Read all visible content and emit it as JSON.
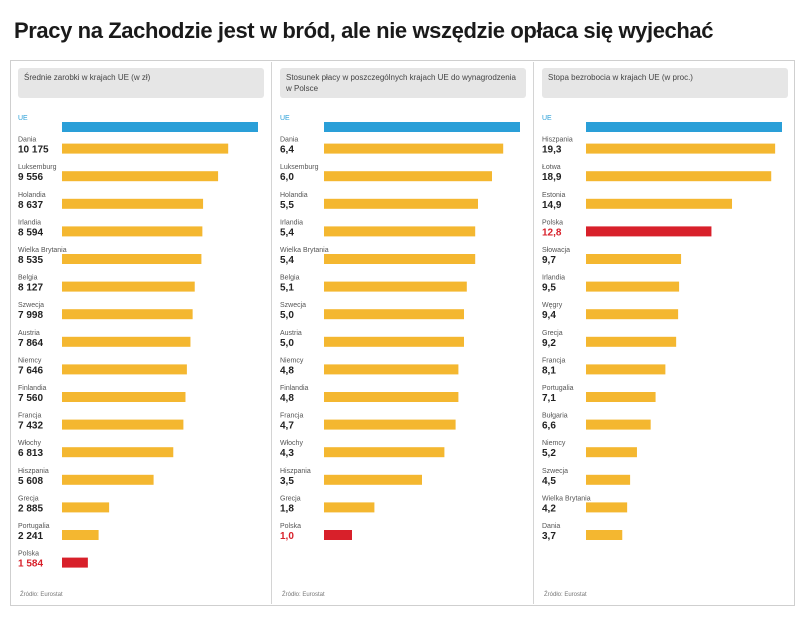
{
  "title": "Pracy na Zachodzie jest w bród, ale nie wszędzie opłaca się wyjechać",
  "colors": {
    "highlight": "#2a9fd8",
    "bar": "#f4b730",
    "poland": "#d8202a"
  },
  "chart_data": [
    {
      "type": "bar",
      "orientation": "horizontal",
      "header": "Średnie zarobki w krajach UE (w zł)",
      "source": "Źródło: Eurostat",
      "xlim": [
        0,
        12000
      ],
      "items": [
        {
          "label": "UE",
          "value_text": "",
          "value": 12000,
          "color": "highlight"
        },
        {
          "label": "Dania",
          "value_text": "10 175",
          "value": 10175,
          "color": "bar"
        },
        {
          "label": "Luksemburg",
          "value_text": "9 556",
          "value": 9556,
          "color": "bar"
        },
        {
          "label": "Holandia",
          "value_text": "8 637",
          "value": 8637,
          "color": "bar"
        },
        {
          "label": "Irlandia",
          "value_text": "8 594",
          "value": 8594,
          "color": "bar"
        },
        {
          "label": "Wielka Brytania",
          "value_text": "8 535",
          "value": 8535,
          "color": "bar"
        },
        {
          "label": "Belgia",
          "value_text": "8 127",
          "value": 8127,
          "color": "bar"
        },
        {
          "label": "Szwecja",
          "value_text": "7 998",
          "value": 7998,
          "color": "bar"
        },
        {
          "label": "Austria",
          "value_text": "7 864",
          "value": 7864,
          "color": "bar"
        },
        {
          "label": "Niemcy",
          "value_text": "7 646",
          "value": 7646,
          "color": "bar"
        },
        {
          "label": "Finlandia",
          "value_text": "7 560",
          "value": 7560,
          "color": "bar"
        },
        {
          "label": "Francja",
          "value_text": "7 432",
          "value": 7432,
          "color": "bar"
        },
        {
          "label": "Włochy",
          "value_text": "6 813",
          "value": 6813,
          "color": "bar"
        },
        {
          "label": "Hiszpania",
          "value_text": "5 608",
          "value": 5608,
          "color": "bar"
        },
        {
          "label": "Grecja",
          "value_text": "2 885",
          "value": 2885,
          "color": "bar"
        },
        {
          "label": "Portugalia",
          "value_text": "2 241",
          "value": 2241,
          "color": "bar"
        },
        {
          "label": "Polska",
          "value_text": "1 584",
          "value": 1584,
          "color": "poland"
        }
      ]
    },
    {
      "type": "bar",
      "orientation": "horizontal",
      "header": "Stosunek płacy w poszczególnych krajach UE do wynagrodzenia w Polsce",
      "source": "Źródło: Eurostat",
      "xlim": [
        0,
        7
      ],
      "items": [
        {
          "label": "UE",
          "value_text": "",
          "value": 7.0,
          "color": "highlight"
        },
        {
          "label": "Dania",
          "value_text": "6,4",
          "value": 6.4,
          "color": "bar"
        },
        {
          "label": "Luksemburg",
          "value_text": "6,0",
          "value": 6.0,
          "color": "bar"
        },
        {
          "label": "Holandia",
          "value_text": "5,5",
          "value": 5.5,
          "color": "bar"
        },
        {
          "label": "Irlandia",
          "value_text": "5,4",
          "value": 5.4,
          "color": "bar"
        },
        {
          "label": "Wielka Brytania",
          "value_text": "5,4",
          "value": 5.4,
          "color": "bar"
        },
        {
          "label": "Belgia",
          "value_text": "5,1",
          "value": 5.1,
          "color": "bar"
        },
        {
          "label": "Szwecja",
          "value_text": "5,0",
          "value": 5.0,
          "color": "bar"
        },
        {
          "label": "Austria",
          "value_text": "5,0",
          "value": 5.0,
          "color": "bar"
        },
        {
          "label": "Niemcy",
          "value_text": "4,8",
          "value": 4.8,
          "color": "bar"
        },
        {
          "label": "Finlandia",
          "value_text": "4,8",
          "value": 4.8,
          "color": "bar"
        },
        {
          "label": "Francja",
          "value_text": "4,7",
          "value": 4.7,
          "color": "bar"
        },
        {
          "label": "Włochy",
          "value_text": "4,3",
          "value": 4.3,
          "color": "bar"
        },
        {
          "label": "Hiszpania",
          "value_text": "3,5",
          "value": 3.5,
          "color": "bar"
        },
        {
          "label": "Grecja",
          "value_text": "1,8",
          "value": 1.8,
          "color": "bar"
        },
        {
          "label": "Polska",
          "value_text": "1,0",
          "value": 1.0,
          "color": "poland"
        }
      ]
    },
    {
      "type": "bar",
      "orientation": "horizontal",
      "header": "Stopa bezrobocia w krajach UE (w proc.)",
      "source": "Źródło: Eurostat",
      "xlim": [
        0,
        20
      ],
      "items": [
        {
          "label": "UE",
          "value_text": "",
          "value": 20,
          "color": "highlight"
        },
        {
          "label": "Hiszpania",
          "value_text": "19,3",
          "value": 19.3,
          "color": "bar"
        },
        {
          "label": "Łotwa",
          "value_text": "18,9",
          "value": 18.9,
          "color": "bar"
        },
        {
          "label": "Estonia",
          "value_text": "14,9",
          "value": 14.9,
          "color": "bar"
        },
        {
          "label": "Polska",
          "value_text": "12,8",
          "value": 12.8,
          "color": "poland"
        },
        {
          "label": "Słowacja",
          "value_text": "9,7",
          "value": 9.7,
          "color": "bar"
        },
        {
          "label": "Irlandia",
          "value_text": "9,5",
          "value": 9.5,
          "color": "bar"
        },
        {
          "label": "Węgry",
          "value_text": "9,4",
          "value": 9.4,
          "color": "bar"
        },
        {
          "label": "Grecja",
          "value_text": "9,2",
          "value": 9.2,
          "color": "bar"
        },
        {
          "label": "Francja",
          "value_text": "8,1",
          "value": 8.1,
          "color": "bar"
        },
        {
          "label": "Portugalia",
          "value_text": "7,1",
          "value": 7.1,
          "color": "bar"
        },
        {
          "label": "Bułgaria",
          "value_text": "6,6",
          "value": 6.6,
          "color": "bar"
        },
        {
          "label": "Niemcy",
          "value_text": "5,2",
          "value": 5.2,
          "color": "bar"
        },
        {
          "label": "Szwecja",
          "value_text": "4,5",
          "value": 4.5,
          "color": "bar"
        },
        {
          "label": "Wielka Brytania",
          "value_text": "4,2",
          "value": 4.2,
          "color": "bar"
        },
        {
          "label": "Dania",
          "value_text": "3,7",
          "value": 3.7,
          "color": "bar"
        }
      ]
    }
  ]
}
